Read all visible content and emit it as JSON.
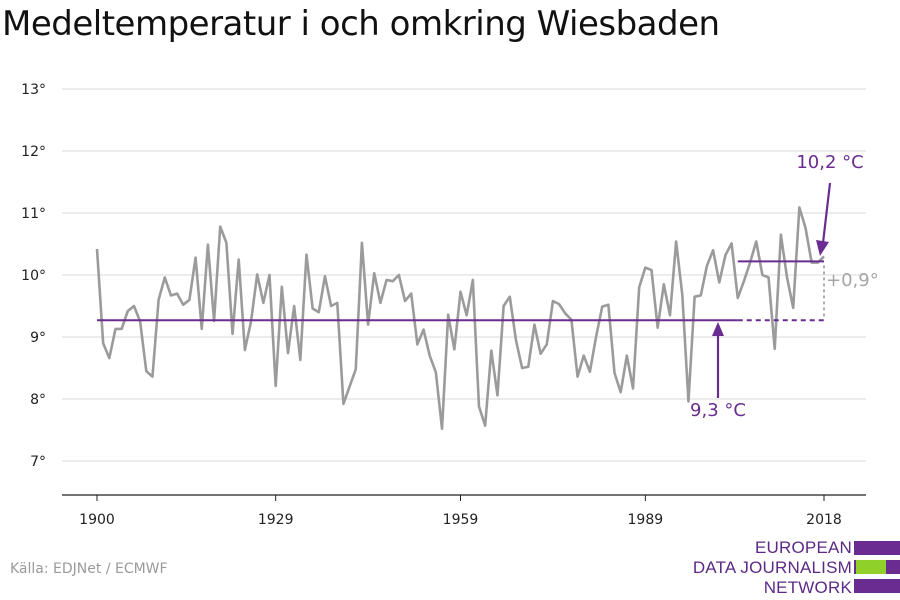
{
  "title": "Medeltemperatur i och omkring Wiesbaden",
  "source": "Källa: EDJNet / ECMWF",
  "logo": {
    "lines": [
      "EUROPEAN",
      "DATA JOURNALISM",
      "NETWORK"
    ],
    "colors": {
      "purple": "#6a2c91",
      "green": "#8fd12a"
    }
  },
  "colors": {
    "series": "#9b9b9b",
    "mean": "#6a2c91",
    "grid": "#d9d9d9",
    "axis": "#222222",
    "diff": "#a6a6a6"
  },
  "chart_data": {
    "type": "line",
    "title": "Medeltemperatur i och omkring Wiesbaden",
    "xlabel": "",
    "ylabel": "",
    "x_ticks": [
      1900,
      1929,
      1959,
      1989,
      2018
    ],
    "y_ticks": [
      7,
      8,
      9,
      10,
      11,
      12,
      13
    ],
    "y_tick_labels": [
      "7°",
      "8°",
      "9°",
      "10°",
      "11°",
      "12°",
      "13°"
    ],
    "xlim": [
      1900,
      2018
    ],
    "ylim": [
      6.6,
      13.2
    ],
    "grid": "horizontal",
    "x_start": 1900,
    "values": [
      10.42,
      8.9,
      8.66,
      9.13,
      9.13,
      9.42,
      9.5,
      9.25,
      8.45,
      8.36,
      9.6,
      9.96,
      9.67,
      9.7,
      9.52,
      9.6,
      10.28,
      9.13,
      10.49,
      9.26,
      10.78,
      10.52,
      9.05,
      10.25,
      8.79,
      9.25,
      10.01,
      9.55,
      10.0,
      8.21,
      9.81,
      8.74,
      9.5,
      8.63,
      10.33,
      9.46,
      9.4,
      9.98,
      9.5,
      9.55,
      7.92,
      8.2,
      8.48,
      10.52,
      9.2,
      10.03,
      9.55,
      9.92,
      9.9,
      10.0,
      9.58,
      9.7,
      8.88,
      9.12,
      8.7,
      8.43,
      7.52,
      9.36,
      8.8,
      9.73,
      9.35,
      9.92,
      7.88,
      7.57,
      8.78,
      8.06,
      9.5,
      9.65,
      8.95,
      8.5,
      8.52,
      9.2,
      8.73,
      8.88,
      9.58,
      9.53,
      9.38,
      9.28,
      8.36,
      8.7,
      8.44,
      9.0,
      9.49,
      9.52,
      8.42,
      8.11,
      8.7,
      8.17,
      9.8,
      10.12,
      10.08,
      9.15,
      9.85,
      9.35,
      10.54,
      9.68,
      7.96,
      9.65,
      9.67,
      10.15,
      10.4,
      9.88,
      10.32,
      10.51,
      9.63,
      9.9,
      10.2,
      10.54,
      10.0,
      9.96,
      8.81,
      10.65,
      9.96,
      9.47,
      11.09,
      10.76,
      10.2,
      10.2,
      10.3
    ],
    "series_name": "",
    "reference_lines": [
      {
        "label": "9,3 °C",
        "value": 9.27,
        "from": 1900,
        "to": 2004,
        "style": "solid"
      },
      {
        "label": "",
        "value": 9.27,
        "from": 2004,
        "to": 2018,
        "style": "dashed"
      },
      {
        "label": "10,2 °C",
        "value": 10.22,
        "from": 2004,
        "to": 2018,
        "style": "solid"
      }
    ],
    "annotations": {
      "baseline_label": "9,3 °C",
      "recent_label": "10,2 °C",
      "difference_label": "+0,9°"
    }
  }
}
